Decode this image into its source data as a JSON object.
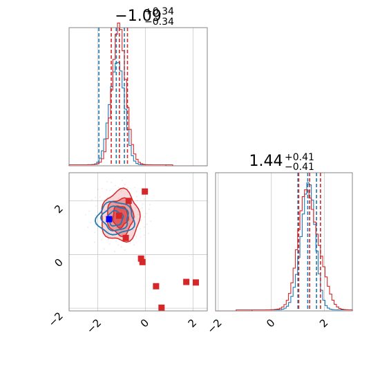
{
  "chart_data": {
    "type": "corner",
    "titles": [
      {
        "value": "−1.09",
        "upper": "+0.34",
        "lower": "−0.34"
      },
      {
        "value": "1.44",
        "upper": "+0.41",
        "lower": "−0.41"
      }
    ],
    "ranges": {
      "p0": [
        -3.2,
        2.6
      ],
      "p1": [
        -2.1,
        3.05
      ]
    },
    "ticks": {
      "p0": {
        "values": [
          -2,
          0,
          2
        ],
        "labels": [
          "−2",
          "0",
          "2"
        ]
      },
      "p1": {
        "values": [
          -2,
          0,
          2
        ],
        "labels": [
          "−2",
          "0",
          "2"
        ]
      }
    },
    "grid": true,
    "colors": {
      "blue": "#1f77b4",
      "red": "#d62728",
      "grid": "#c8c8c8"
    },
    "series": [
      {
        "color": "#1f77b4",
        "hist_p0": {
          "mean": -1.2,
          "sd": 0.28
        },
        "hist_p1": {
          "mean": 1.35,
          "sd": 0.28
        },
        "quantiles_p0": [
          -1.95,
          -1.22,
          -0.88
        ],
        "quantiles_p1": [
          1.0,
          1.37,
          1.7
        ]
      },
      {
        "color": "#d62728",
        "hist_p0": {
          "mean": -1.08,
          "sd": 0.3
        },
        "hist_p1": {
          "mean": 1.44,
          "sd": 0.38
        },
        "quantiles_p0": [
          -1.43,
          -1.09,
          -0.75
        ],
        "quantiles_p1": [
          1.03,
          1.44,
          1.85
        ]
      }
    ],
    "red_points": [
      [
        -0.02,
        2.35
      ],
      [
        -0.7,
        2.0
      ],
      [
        -0.82,
        0.62
      ],
      [
        -1.1,
        1.45
      ],
      [
        -0.18,
        -0.15
      ],
      [
        -0.12,
        -0.28
      ],
      [
        0.45,
        -1.18
      ],
      [
        0.68,
        -1.98
      ],
      [
        1.72,
        -1.02
      ],
      [
        2.12,
        -1.04
      ]
    ],
    "blue_point": [
      -1.52,
      1.32
    ]
  }
}
